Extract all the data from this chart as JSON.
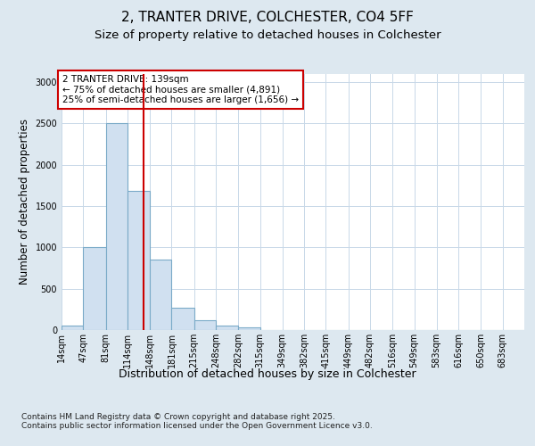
{
  "title_line1": "2, TRANTER DRIVE, COLCHESTER, CO4 5FF",
  "title_line2": "Size of property relative to detached houses in Colchester",
  "xlabel": "Distribution of detached houses by size in Colchester",
  "ylabel": "Number of detached properties",
  "footnote": "Contains HM Land Registry data © Crown copyright and database right 2025.\nContains public sector information licensed under the Open Government Licence v3.0.",
  "bin_labels": [
    "14sqm",
    "47sqm",
    "81sqm",
    "114sqm",
    "148sqm",
    "181sqm",
    "215sqm",
    "248sqm",
    "282sqm",
    "315sqm",
    "349sqm",
    "382sqm",
    "415sqm",
    "449sqm",
    "482sqm",
    "516sqm",
    "549sqm",
    "583sqm",
    "616sqm",
    "650sqm",
    "683sqm"
  ],
  "bin_edges": [
    14,
    47,
    81,
    114,
    148,
    181,
    215,
    248,
    282,
    315,
    349,
    382,
    415,
    449,
    482,
    516,
    549,
    583,
    616,
    650,
    683,
    716
  ],
  "bar_heights": [
    50,
    1000,
    2500,
    1680,
    850,
    270,
    120,
    50,
    30,
    5,
    0,
    5,
    0,
    0,
    5,
    0,
    0,
    0,
    0,
    0,
    0
  ],
  "bar_color": "#d0e0f0",
  "bar_edgecolor": "#7aaac8",
  "bar_linewidth": 0.8,
  "vline_x": 139,
  "vline_color": "#cc0000",
  "vline_linewidth": 1.5,
  "annotation_text": "2 TRANTER DRIVE: 139sqm\n← 75% of detached houses are smaller (4,891)\n25% of semi-detached houses are larger (1,656) →",
  "annotation_box_color": "#cc0000",
  "ylim": [
    0,
    3100
  ],
  "yticks": [
    0,
    500,
    1000,
    1500,
    2000,
    2500,
    3000
  ],
  "background_color": "#dde8f0",
  "plot_background_color": "#ffffff",
  "grid_color": "#c8d8e8",
  "title_fontsize": 11,
  "subtitle_fontsize": 9.5,
  "tick_fontsize": 7,
  "ylabel_fontsize": 8.5,
  "xlabel_fontsize": 9,
  "footnote_fontsize": 6.5,
  "ann_fontsize": 7.5
}
